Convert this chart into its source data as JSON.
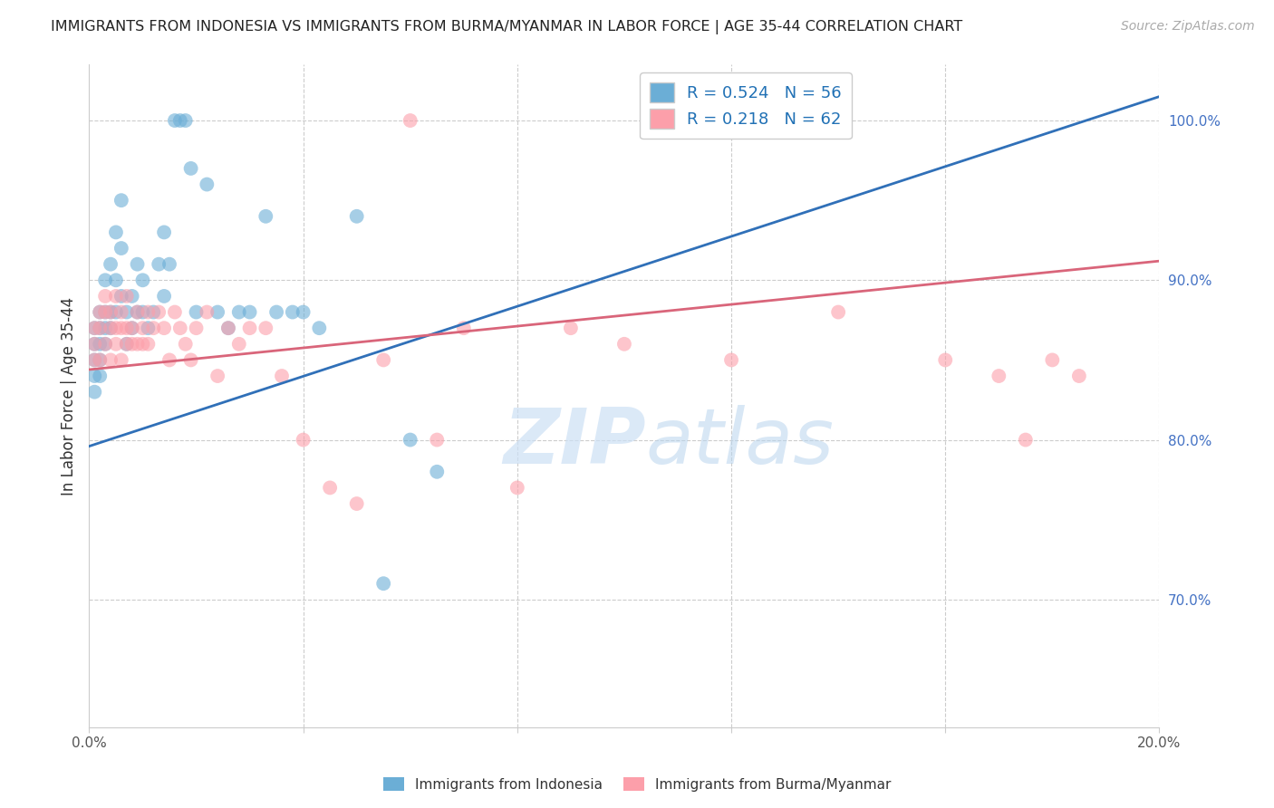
{
  "title": "IMMIGRANTS FROM INDONESIA VS IMMIGRANTS FROM BURMA/MYANMAR IN LABOR FORCE | AGE 35-44 CORRELATION CHART",
  "source": "Source: ZipAtlas.com",
  "ylabel": "In Labor Force | Age 35-44",
  "xlim": [
    0.0,
    0.2
  ],
  "ylim": [
    0.62,
    1.035
  ],
  "xticks": [
    0.0,
    0.04,
    0.08,
    0.12,
    0.16,
    0.2
  ],
  "xtick_labels": [
    "0.0%",
    "",
    "",
    "",
    "",
    "20.0%"
  ],
  "ytick_labels_right": [
    "100.0%",
    "90.0%",
    "80.0%",
    "70.0%"
  ],
  "yticks_right": [
    1.0,
    0.9,
    0.8,
    0.7
  ],
  "blue_R": 0.524,
  "blue_N": 56,
  "pink_R": 0.218,
  "pink_N": 62,
  "blue_color": "#6baed6",
  "pink_color": "#fc9faa",
  "blue_line_color": "#3070b8",
  "pink_line_color": "#d9657a",
  "watermark_zip": "ZIP",
  "watermark_atlas": "atlas",
  "blue_line_x0": 0.0,
  "blue_line_y0": 0.796,
  "blue_line_x1": 0.2,
  "blue_line_y1": 1.015,
  "pink_line_x0": 0.0,
  "pink_line_y0": 0.844,
  "pink_line_x1": 0.2,
  "pink_line_y1": 0.912,
  "blue_points_x": [
    0.001,
    0.001,
    0.001,
    0.001,
    0.001,
    0.002,
    0.002,
    0.002,
    0.002,
    0.002,
    0.003,
    0.003,
    0.003,
    0.003,
    0.004,
    0.004,
    0.004,
    0.005,
    0.005,
    0.005,
    0.006,
    0.006,
    0.006,
    0.007,
    0.007,
    0.008,
    0.008,
    0.009,
    0.009,
    0.01,
    0.01,
    0.011,
    0.012,
    0.013,
    0.014,
    0.014,
    0.015,
    0.016,
    0.017,
    0.018,
    0.019,
    0.02,
    0.022,
    0.024,
    0.026,
    0.028,
    0.03,
    0.033,
    0.035,
    0.038,
    0.04,
    0.043,
    0.05,
    0.055,
    0.06,
    0.065
  ],
  "blue_points_y": [
    0.87,
    0.86,
    0.85,
    0.84,
    0.83,
    0.88,
    0.87,
    0.86,
    0.85,
    0.84,
    0.9,
    0.88,
    0.87,
    0.86,
    0.91,
    0.88,
    0.87,
    0.93,
    0.9,
    0.88,
    0.95,
    0.92,
    0.89,
    0.88,
    0.86,
    0.89,
    0.87,
    0.91,
    0.88,
    0.9,
    0.88,
    0.87,
    0.88,
    0.91,
    0.93,
    0.89,
    0.91,
    1.0,
    1.0,
    1.0,
    0.97,
    0.88,
    0.96,
    0.88,
    0.87,
    0.88,
    0.88,
    0.94,
    0.88,
    0.88,
    0.88,
    0.87,
    0.94,
    0.71,
    0.8,
    0.78
  ],
  "pink_points_x": [
    0.001,
    0.001,
    0.001,
    0.002,
    0.002,
    0.002,
    0.003,
    0.003,
    0.003,
    0.004,
    0.004,
    0.004,
    0.005,
    0.005,
    0.005,
    0.006,
    0.006,
    0.006,
    0.007,
    0.007,
    0.007,
    0.008,
    0.008,
    0.009,
    0.009,
    0.01,
    0.01,
    0.011,
    0.011,
    0.012,
    0.013,
    0.014,
    0.015,
    0.016,
    0.017,
    0.018,
    0.019,
    0.02,
    0.022,
    0.024,
    0.026,
    0.028,
    0.03,
    0.033,
    0.036,
    0.04,
    0.045,
    0.05,
    0.055,
    0.06,
    0.065,
    0.07,
    0.08,
    0.09,
    0.1,
    0.12,
    0.14,
    0.16,
    0.17,
    0.175,
    0.18,
    0.185
  ],
  "pink_points_y": [
    0.87,
    0.86,
    0.85,
    0.88,
    0.87,
    0.85,
    0.89,
    0.88,
    0.86,
    0.88,
    0.87,
    0.85,
    0.89,
    0.87,
    0.86,
    0.88,
    0.87,
    0.85,
    0.89,
    0.87,
    0.86,
    0.87,
    0.86,
    0.88,
    0.86,
    0.87,
    0.86,
    0.88,
    0.86,
    0.87,
    0.88,
    0.87,
    0.85,
    0.88,
    0.87,
    0.86,
    0.85,
    0.87,
    0.88,
    0.84,
    0.87,
    0.86,
    0.87,
    0.87,
    0.84,
    0.8,
    0.77,
    0.76,
    0.85,
    1.0,
    0.8,
    0.87,
    0.77,
    0.87,
    0.86,
    0.85,
    0.88,
    0.85,
    0.84,
    0.8,
    0.85,
    0.84
  ]
}
